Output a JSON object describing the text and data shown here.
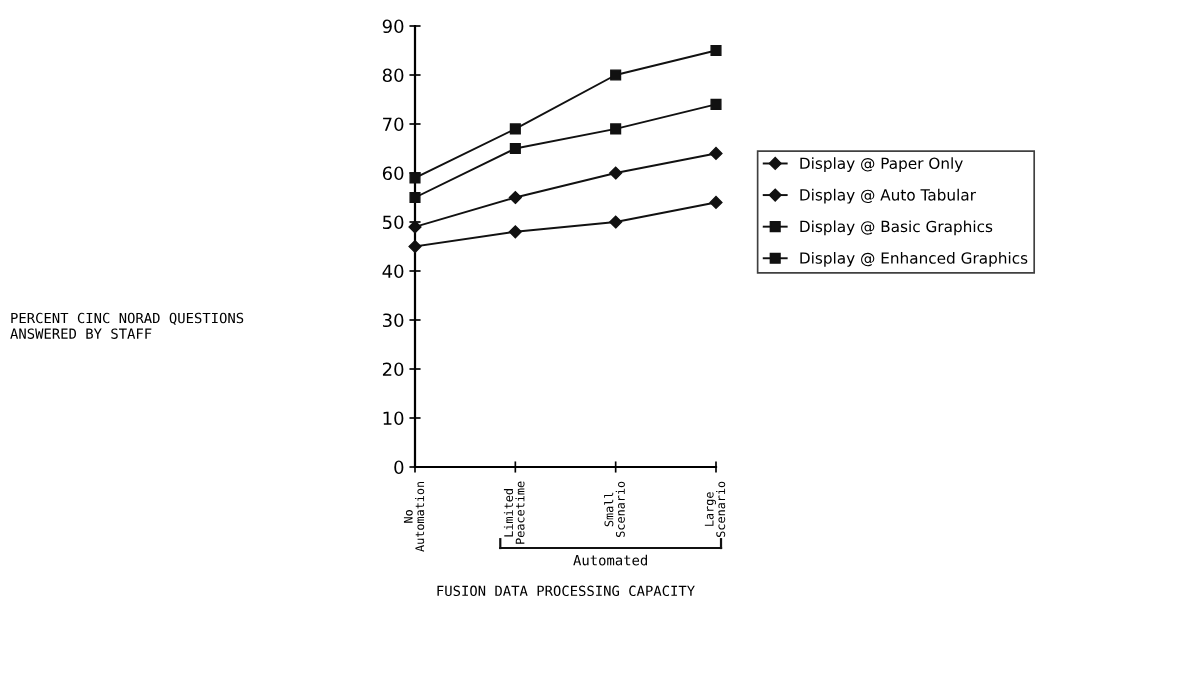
{
  "chart_data": {
    "type": "line",
    "xlabel": "FUSION DATA PROCESSING CAPACITY",
    "categories": [
      "No\nAutomation",
      "Limited\nPeacetime",
      "Small\nScenario",
      "Large\nScenario"
    ],
    "series": [
      {
        "name": "Display @ Paper Only",
        "color": "#111111",
        "marker": "diamond",
        "values": [
          45,
          48,
          50,
          54
        ]
      },
      {
        "name": "Display @ Auto Tabular",
        "color": "#111111",
        "marker": "diamond",
        "values": [
          49,
          55,
          60,
          64
        ]
      },
      {
        "name": "Display @ Basic Graphics",
        "color": "#111111",
        "marker": "square",
        "values": [
          55,
          65,
          69,
          74
        ]
      },
      {
        "name": "Display @ Enhanced Graphics",
        "color": "#111111",
        "marker": "square",
        "values": [
          59,
          69,
          80,
          85
        ]
      }
    ],
    "annotations": [
      "Automated",
      "PERCENT CINC NORAD QUESTIONS\nANSWERED BY STAFF"
    ],
    "ylim": [
      0,
      90
    ],
    "yticks": [
      0,
      10,
      20,
      30,
      40,
      50,
      60,
      70,
      80,
      90
    ],
    "grid": false,
    "legend": "right",
    "line_style": "solid"
  }
}
